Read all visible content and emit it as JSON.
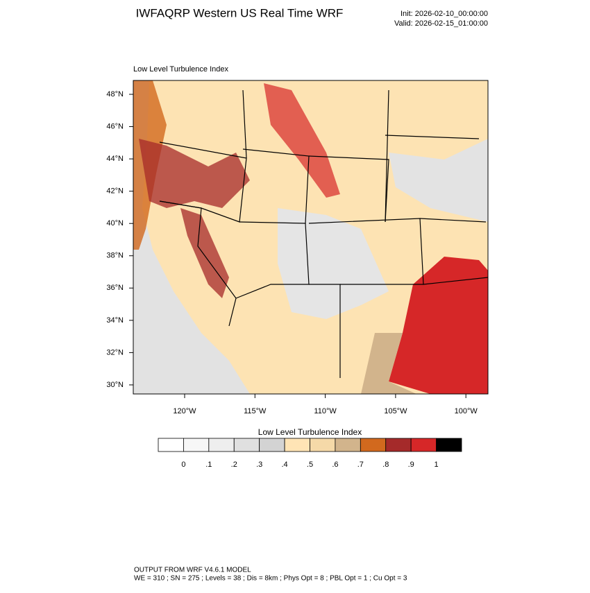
{
  "header": {
    "title": "IWFAQRP Western US Real Time WRF",
    "init": "Init: 2026-02-10_00:00:00",
    "valid": "Valid: 2026-02-15_01:00:00"
  },
  "map": {
    "subtitle": "Low Level Turbulence Index",
    "lat_labels": [
      "48°N",
      "46°N",
      "44°N",
      "42°N",
      "40°N",
      "38°N",
      "36°N",
      "34°N",
      "32°N",
      "30°N"
    ],
    "lon_labels": [
      "120°W",
      "115°W",
      "110°W",
      "105°W",
      "100°W"
    ]
  },
  "colorbar": {
    "title": "Low Level Turbulence Index",
    "colors": [
      "#ffffff",
      "#f7f7f7",
      "#eeeeee",
      "#e0e0e0",
      "#d3d3d3",
      "#ffe4b5",
      "#f5d9a8",
      "#d2b48c",
      "#d2691e",
      "#a52a2a",
      "#d62728",
      "#000000"
    ],
    "labels": [
      "0",
      ".1",
      ".2",
      ".3",
      ".4",
      ".5",
      ".6",
      ".7",
      ".8",
      ".9",
      "1"
    ]
  },
  "footer": {
    "line1": "OUTPUT FROM WRF V4.6.1 MODEL",
    "line2": "WE = 310 ; SN = 275 ; Levels = 38 ; Dis = 8km ; Phys Opt = 8 ; PBL Opt = 1 ; Cu Opt = 3"
  }
}
